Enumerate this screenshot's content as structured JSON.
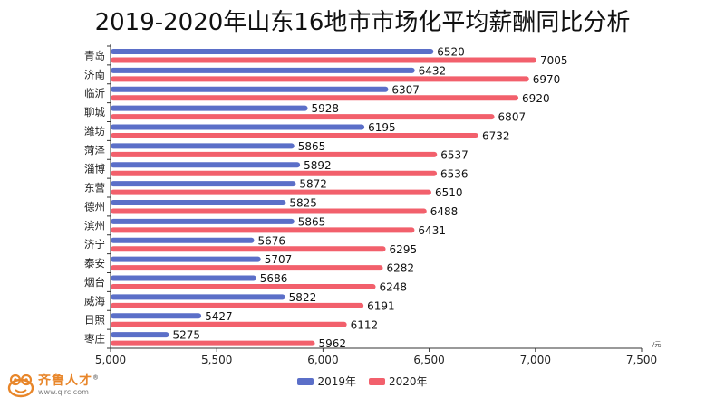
{
  "chart_data": {
    "type": "bar",
    "orientation": "horizontal",
    "title": "2019-2020年山东16地市市场化平均薪酬同比分析",
    "unit": "/元",
    "categories": [
      "青岛",
      "济南",
      "临沂",
      "聊城",
      "潍坊",
      "菏泽",
      "淄博",
      "东营",
      "德州",
      "滨州",
      "济宁",
      "泰安",
      "烟台",
      "威海",
      "日照",
      "枣庄"
    ],
    "series": [
      {
        "name": "2019年",
        "color": "#5b6fc8",
        "values": [
          6520,
          6432,
          6307,
          5928,
          6195,
          5865,
          5892,
          5872,
          5825,
          5865,
          5676,
          5707,
          5686,
          5822,
          5427,
          5275
        ]
      },
      {
        "name": "2020年",
        "color": "#f2606c",
        "values": [
          7005,
          6970,
          6920,
          6807,
          6732,
          6537,
          6536,
          6510,
          6488,
          6431,
          6295,
          6282,
          6248,
          6191,
          6112,
          5962
        ]
      }
    ],
    "xlim": [
      5000,
      7500
    ],
    "xticks": [
      "5,000",
      "5,500",
      "6,000",
      "6,500",
      "7,000",
      "7,500"
    ],
    "xtick_values": [
      5000,
      5500,
      6000,
      6500,
      7000,
      7500
    ],
    "grid": false,
    "legend_position": "bottom-center"
  },
  "logo": {
    "name": "齐鲁人才",
    "url": "www.qlrc.com",
    "registered": "®"
  }
}
